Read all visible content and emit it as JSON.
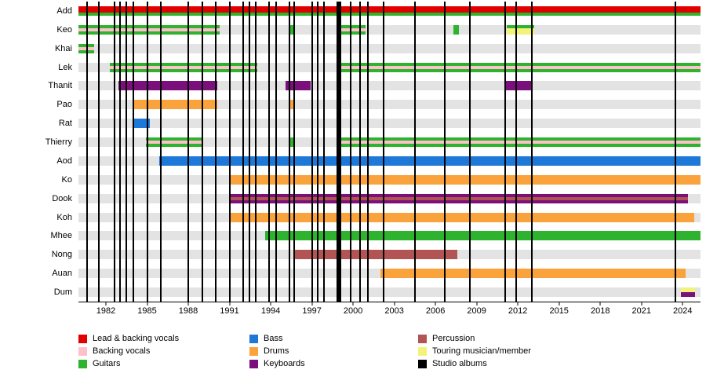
{
  "colors": {
    "lead_backing_vocals": "#e00000",
    "backing_vocals": "#ffc0cb",
    "guitars": "#2db32d",
    "bass": "#1e78d7",
    "drums": "#faa23c",
    "keyboards": "#7b0f7b",
    "percussion": "#b25454",
    "touring": "#f3f37a",
    "albums": "#000000",
    "row_band": "#e3e3e3"
  },
  "chart_data": {
    "type": "timeline",
    "title": "",
    "x_axis": {
      "start": 1980,
      "end": 2025.3,
      "ticks": [
        1982,
        1985,
        1988,
        1991,
        1994,
        1997,
        2000,
        2003,
        2006,
        2009,
        2012,
        2015,
        2018,
        2021,
        2024
      ]
    },
    "rows": [
      {
        "label": "Add",
        "segments": [
          {
            "from": 1980,
            "to": 2025.3,
            "role": "lead_backing_vocals",
            "style": "full"
          },
          {
            "from": 1980,
            "to": 2025.3,
            "role": "guitars",
            "style": "bottom"
          }
        ]
      },
      {
        "label": "Keo",
        "segments": [
          {
            "from": 1980,
            "to": 1990.3,
            "role": "guitars",
            "style": "full"
          },
          {
            "from": 1980,
            "to": 1990.3,
            "role": "backing_vocals",
            "style": "center"
          },
          {
            "from": 1995.3,
            "to": 1995.7,
            "role": "guitars",
            "style": "full"
          },
          {
            "from": 1998.85,
            "to": 2000.9,
            "role": "guitars",
            "style": "full"
          },
          {
            "from": 1998.85,
            "to": 2000.9,
            "role": "backing_vocals",
            "style": "center"
          },
          {
            "from": 2007.3,
            "to": 2007.7,
            "role": "guitars",
            "style": "full"
          },
          {
            "from": 2011.2,
            "to": 2013.2,
            "role": "touring",
            "style": "full"
          },
          {
            "from": 2011.2,
            "to": 2013.2,
            "role": "guitars",
            "style": "top"
          }
        ]
      },
      {
        "label": "Khai",
        "segments": [
          {
            "from": 1980,
            "to": 1981.15,
            "role": "guitars",
            "style": "full"
          },
          {
            "from": 1980,
            "to": 1981.15,
            "role": "backing_vocals",
            "style": "center"
          }
        ]
      },
      {
        "label": "Lek",
        "segments": [
          {
            "from": 1982.3,
            "to": 1993.0,
            "role": "guitars",
            "style": "full"
          },
          {
            "from": 1982.3,
            "to": 1993.0,
            "role": "backing_vocals",
            "style": "center"
          },
          {
            "from": 1998.85,
            "to": 2025.3,
            "role": "guitars",
            "style": "full"
          },
          {
            "from": 1998.85,
            "to": 2025.3,
            "role": "backing_vocals",
            "style": "center"
          }
        ]
      },
      {
        "label": "Thanit",
        "segments": [
          {
            "from": 1982.9,
            "to": 1990.1,
            "role": "keyboards",
            "style": "full"
          },
          {
            "from": 1995.1,
            "to": 1996.9,
            "role": "keyboards",
            "style": "full"
          },
          {
            "from": 2011.1,
            "to": 2013.1,
            "role": "keyboards",
            "style": "full"
          }
        ]
      },
      {
        "label": "Pao",
        "segments": [
          {
            "from": 1984.0,
            "to": 1990.1,
            "role": "drums",
            "style": "full"
          },
          {
            "from": 1995.3,
            "to": 1995.7,
            "role": "drums",
            "style": "full"
          }
        ]
      },
      {
        "label": "Rat",
        "segments": [
          {
            "from": 1984.0,
            "to": 1985.2,
            "role": "bass",
            "style": "full"
          }
        ]
      },
      {
        "label": "Thierry",
        "segments": [
          {
            "from": 1984.9,
            "to": 1989.0,
            "role": "guitars",
            "style": "full"
          },
          {
            "from": 1984.9,
            "to": 1989.0,
            "role": "backing_vocals",
            "style": "center"
          },
          {
            "from": 1995.3,
            "to": 1995.7,
            "role": "guitars",
            "style": "full"
          },
          {
            "from": 1998.85,
            "to": 2025.3,
            "role": "guitars",
            "style": "full"
          },
          {
            "from": 1998.85,
            "to": 2025.3,
            "role": "backing_vocals",
            "style": "center"
          }
        ]
      },
      {
        "label": "Aod",
        "segments": [
          {
            "from": 1985.9,
            "to": 2025.3,
            "role": "bass",
            "style": "full"
          }
        ]
      },
      {
        "label": "Ko",
        "segments": [
          {
            "from": 1991.0,
            "to": 2025.3,
            "role": "drums",
            "style": "full"
          }
        ]
      },
      {
        "label": "Dook",
        "segments": [
          {
            "from": 1991.0,
            "to": 2024.4,
            "role": "keyboards",
            "style": "full"
          },
          {
            "from": 1991.0,
            "to": 2024.4,
            "role": "percussion",
            "style": "center"
          }
        ]
      },
      {
        "label": "Koh",
        "segments": [
          {
            "from": 1991.0,
            "to": 2024.85,
            "role": "drums",
            "style": "full"
          }
        ]
      },
      {
        "label": "Mhee",
        "segments": [
          {
            "from": 1993.6,
            "to": 2025.3,
            "role": "guitars",
            "style": "full"
          }
        ]
      },
      {
        "label": "Nong",
        "segments": [
          {
            "from": 1995.65,
            "to": 2007.6,
            "role": "percussion",
            "style": "full"
          }
        ]
      },
      {
        "label": "Auan",
        "segments": [
          {
            "from": 2002.0,
            "to": 2024.2,
            "role": "drums",
            "style": "full"
          }
        ]
      },
      {
        "label": "Dum",
        "segments": [
          {
            "from": 2023.9,
            "to": 2024.9,
            "role": "touring",
            "style": "top-half"
          },
          {
            "from": 2023.9,
            "to": 2024.9,
            "role": "keyboards",
            "style": "bottom-half"
          }
        ]
      }
    ],
    "album_lines": [
      [
        1980.6,
        2
      ],
      [
        1981.5,
        2
      ],
      [
        1982.6,
        2
      ],
      [
        1983.0,
        2
      ],
      [
        1983.5,
        2
      ],
      [
        1984.0,
        2
      ],
      [
        1985.0,
        2
      ],
      [
        1986.0,
        2
      ],
      [
        1988.0,
        2
      ],
      [
        1989.0,
        2
      ],
      [
        1990.0,
        2
      ],
      [
        1991.0,
        2
      ],
      [
        1992.0,
        2
      ],
      [
        1992.45,
        2
      ],
      [
        1992.9,
        2
      ],
      [
        1993.9,
        2
      ],
      [
        1994.4,
        2
      ],
      [
        1995.35,
        2
      ],
      [
        1995.7,
        2
      ],
      [
        1997.0,
        2
      ],
      [
        1997.4,
        2
      ],
      [
        1997.9,
        2
      ],
      [
        1998.95,
        6
      ],
      [
        1999.8,
        2
      ],
      [
        2000.5,
        2
      ],
      [
        2001.1,
        2
      ],
      [
        2002.2,
        2
      ],
      [
        2004.5,
        2
      ],
      [
        2006.7,
        2
      ],
      [
        2008.5,
        2
      ],
      [
        2011.1,
        2
      ],
      [
        2011.9,
        2
      ],
      [
        2013.0,
        2
      ],
      [
        2023.5,
        2
      ]
    ],
    "legend_column_x": [
      100,
      318,
      533
    ],
    "legend_columns": [
      [
        {
          "label": "Lead & backing vocals",
          "role": "lead_backing_vocals"
        },
        {
          "label": "Backing vocals",
          "role": "backing_vocals"
        },
        {
          "label": "Guitars",
          "role": "guitars"
        }
      ],
      [
        {
          "label": "Bass",
          "role": "bass"
        },
        {
          "label": "Drums",
          "role": "drums"
        },
        {
          "label": "Keyboards",
          "role": "keyboards"
        }
      ],
      [
        {
          "label": "Percussion",
          "role": "percussion"
        },
        {
          "label": "Touring musician/member",
          "role": "touring"
        },
        {
          "label": "Studio albums",
          "role": "albums"
        }
      ]
    ]
  }
}
